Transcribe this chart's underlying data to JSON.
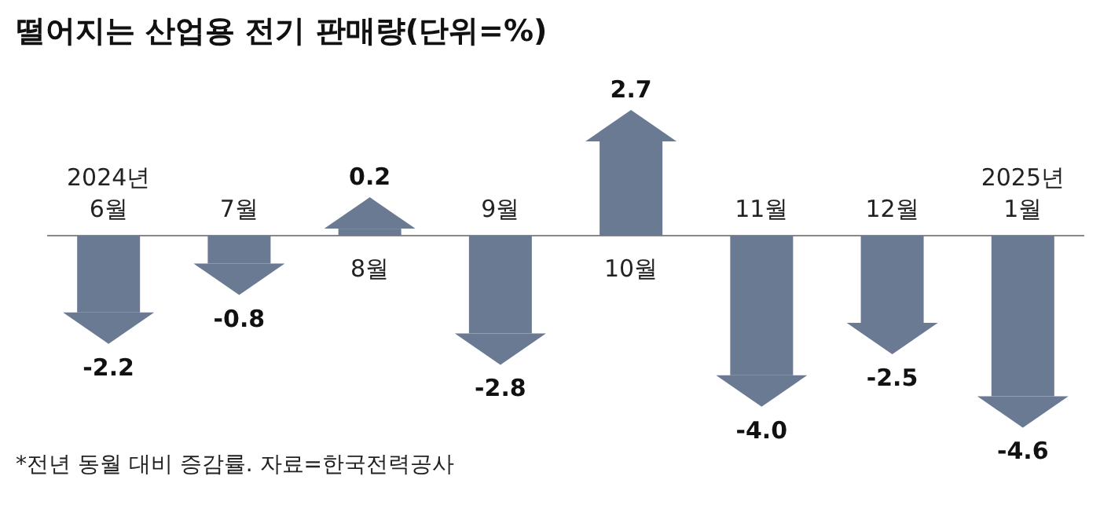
{
  "chart_data": {
    "type": "bar",
    "title": "떨어지는 산업용 전기 판매량(단위=%)",
    "categories": [
      "2024년 6월",
      "7월",
      "8월",
      "9월",
      "10월",
      "11월",
      "12월",
      "2025년 1월"
    ],
    "values": [
      -2.2,
      -0.8,
      0.2,
      -2.8,
      2.7,
      -4.0,
      -2.5,
      -4.6
    ],
    "value_labels": [
      "-2.2",
      "-0.8",
      "0.2",
      "-2.8",
      "2.7",
      "-4.0",
      "-2.5",
      "-4.6"
    ],
    "color": "#6b7a93",
    "annotations": [
      "*전년 동월 대비 증감률. 자료=한국전력공사"
    ]
  }
}
